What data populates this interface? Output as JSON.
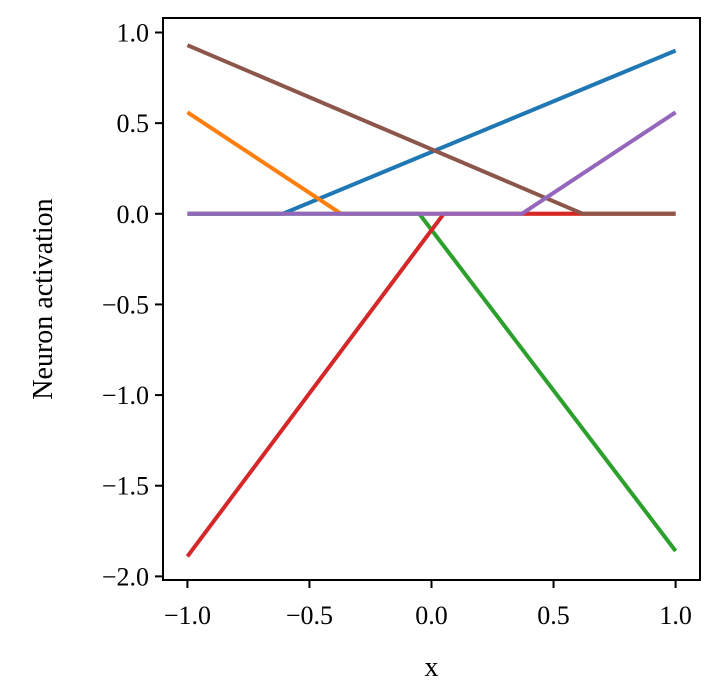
{
  "chart_data": {
    "type": "line",
    "title": "",
    "xlabel": "x",
    "ylabel": "Neuron activation",
    "xlim": [
      -1.1,
      1.1
    ],
    "ylim": [
      -2.02,
      1.08
    ],
    "xticks": [
      -1.0,
      -0.5,
      0.0,
      0.5,
      1.0
    ],
    "xtick_labels": [
      "−1.0",
      "−0.5",
      "0.0",
      "0.5",
      "1.0"
    ],
    "yticks": [
      1.0,
      0.5,
      0.0,
      -0.5,
      -1.0,
      -1.5,
      -2.0
    ],
    "ytick_labels": [
      "1.0",
      "0.5",
      "0.0",
      "−0.5",
      "−1.0",
      "−1.5",
      "−2.0"
    ],
    "grid": false,
    "legend": "none",
    "series": [
      {
        "color": "#1f77b4",
        "x": [
          -1.0,
          -0.61,
          1.0
        ],
        "y": [
          0.0,
          0.0,
          0.9
        ]
      },
      {
        "color": "#ff7f0e",
        "x": [
          -1.0,
          -0.37,
          1.0
        ],
        "y": [
          0.56,
          0.0,
          0.0
        ]
      },
      {
        "color": "#2ca02c",
        "x": [
          -1.0,
          -0.05,
          1.0
        ],
        "y": [
          0.0,
          0.0,
          -1.86
        ]
      },
      {
        "color": "#d62728",
        "x": [
          -1.0,
          0.05,
          0.6,
          1.0
        ],
        "y": [
          -1.89,
          0.0,
          0.0,
          0.0
        ]
      },
      {
        "color": "#8c564b",
        "x": [
          -1.0,
          0.62,
          1.0
        ],
        "y": [
          0.93,
          0.0,
          0.0
        ]
      },
      {
        "color": "#9467bd",
        "x": [
          -1.0,
          0.37,
          1.0
        ],
        "y": [
          0.0,
          0.0,
          0.56
        ]
      }
    ]
  }
}
